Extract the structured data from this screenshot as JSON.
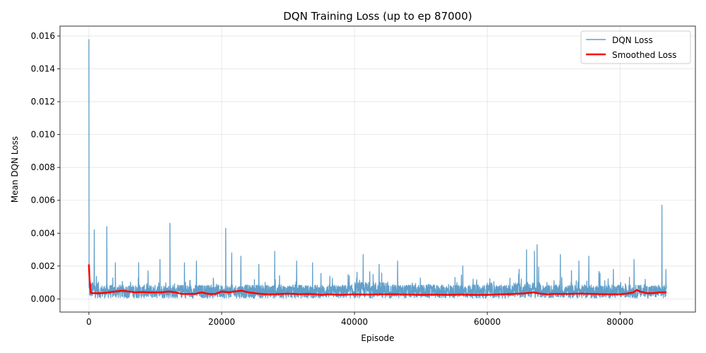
{
  "chart_data": {
    "type": "line",
    "title": "DQN Training Loss (up to ep 87000)",
    "xlabel": "Episode",
    "ylabel": "Mean DQN Loss",
    "xlim": [
      -4350,
      91350
    ],
    "ylim": [
      -0.0008,
      0.0166
    ],
    "xticks": [
      0,
      20000,
      40000,
      60000,
      80000
    ],
    "yticks": [
      0.0,
      0.002,
      0.004,
      0.006,
      0.008,
      0.01,
      0.012,
      0.014,
      0.016
    ],
    "grid": true,
    "legend_position": "top-right",
    "series": [
      {
        "name": "DQN Loss",
        "color": "#1f77b4",
        "opacity": 0.7,
        "base_level": 0.0006,
        "noise_amplitude": 0.0008,
        "spikes": [
          {
            "x": 0,
            "y": 0.0158
          },
          {
            "x": 800,
            "y": 0.0042
          },
          {
            "x": 2700,
            "y": 0.0044
          },
          {
            "x": 4000,
            "y": 0.0022
          },
          {
            "x": 7500,
            "y": 0.0022
          },
          {
            "x": 10700,
            "y": 0.0024
          },
          {
            "x": 12200,
            "y": 0.0046
          },
          {
            "x": 14400,
            "y": 0.0022
          },
          {
            "x": 16200,
            "y": 0.0023
          },
          {
            "x": 20600,
            "y": 0.0043
          },
          {
            "x": 21500,
            "y": 0.0028
          },
          {
            "x": 22900,
            "y": 0.0026
          },
          {
            "x": 25600,
            "y": 0.0021
          },
          {
            "x": 28000,
            "y": 0.0029
          },
          {
            "x": 31300,
            "y": 0.0023
          },
          {
            "x": 33700,
            "y": 0.0022
          },
          {
            "x": 41300,
            "y": 0.0027
          },
          {
            "x": 43700,
            "y": 0.0021
          },
          {
            "x": 46500,
            "y": 0.0023
          },
          {
            "x": 56300,
            "y": 0.002
          },
          {
            "x": 64800,
            "y": 0.0018
          },
          {
            "x": 65900,
            "y": 0.003
          },
          {
            "x": 67100,
            "y": 0.0029
          },
          {
            "x": 67500,
            "y": 0.0033
          },
          {
            "x": 71000,
            "y": 0.0027
          },
          {
            "x": 73800,
            "y": 0.0023
          },
          {
            "x": 75300,
            "y": 0.0026
          },
          {
            "x": 79000,
            "y": 0.0018
          },
          {
            "x": 82100,
            "y": 0.0024
          },
          {
            "x": 86300,
            "y": 0.0057
          },
          {
            "x": 86900,
            "y": 0.0018
          }
        ]
      },
      {
        "name": "Smoothed Loss",
        "color": "#ff0000",
        "x": [
          0,
          100,
          300,
          1000,
          2000,
          3000,
          4000,
          5000,
          6000,
          7000,
          8000,
          9000,
          10000,
          11000,
          12000,
          13000,
          14000,
          15000,
          16000,
          17000,
          18000,
          19000,
          20000,
          21000,
          22000,
          23000,
          24000,
          25000,
          26000,
          27000,
          28000,
          29000,
          30000,
          31000,
          32000,
          33000,
          34000,
          35000,
          36000,
          38000,
          40000,
          42000,
          44000,
          46000,
          48000,
          50000,
          52000,
          54000,
          56000,
          58000,
          60000,
          62000,
          64000,
          66000,
          67000,
          68000,
          69000,
          70000,
          72000,
          74000,
          76000,
          78000,
          80000,
          81000,
          82000,
          82500,
          83000,
          84000,
          85000,
          86000,
          87000
        ],
        "values": [
          0.0021,
          0.0012,
          0.00035,
          0.00035,
          0.00035,
          0.0004,
          0.00045,
          0.0005,
          0.00045,
          0.0004,
          0.00042,
          0.0004,
          0.0004,
          0.0004,
          0.00045,
          0.0004,
          0.0003,
          0.0003,
          0.0003,
          0.0004,
          0.0003,
          0.0003,
          0.00045,
          0.0004,
          0.00045,
          0.0005,
          0.0004,
          0.00035,
          0.0003,
          0.00028,
          0.00028,
          0.0003,
          0.00032,
          0.0003,
          0.00028,
          0.0003,
          0.00028,
          0.00025,
          0.00028,
          0.00025,
          0.00028,
          0.00026,
          0.00028,
          0.00028,
          0.00026,
          0.00025,
          0.00026,
          0.00025,
          0.00026,
          0.00025,
          0.00025,
          0.00028,
          0.0003,
          0.00035,
          0.0004,
          0.00032,
          0.00028,
          0.0003,
          0.0003,
          0.00032,
          0.0003,
          0.00028,
          0.00028,
          0.00032,
          0.0004,
          0.00055,
          0.00045,
          0.00035,
          0.00035,
          0.0004,
          0.0004
        ]
      }
    ]
  }
}
